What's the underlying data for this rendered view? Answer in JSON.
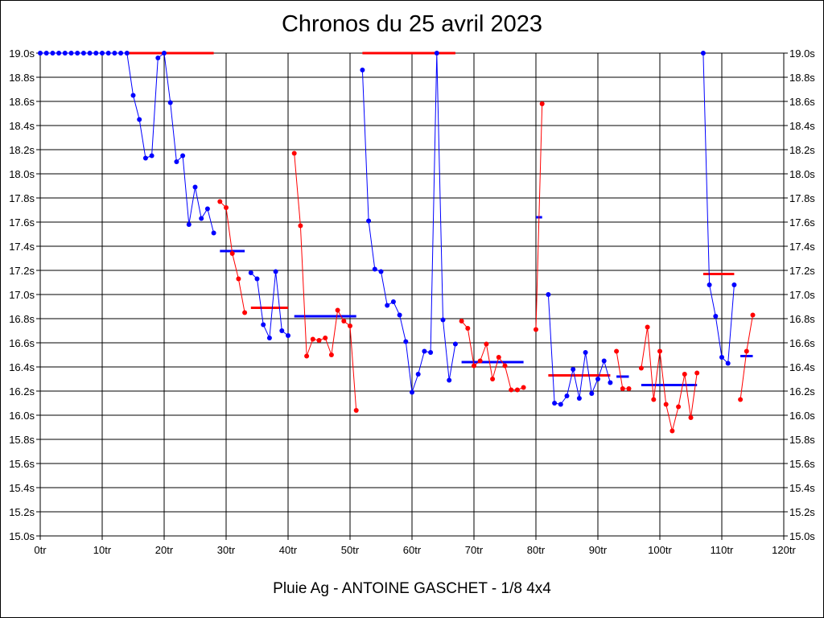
{
  "chart_data": {
    "type": "line",
    "title": "Chronos du 25 avril 2023",
    "footer": "Pluie Ag - ANTOINE GASCHET - 1/8 4x4",
    "xlim": [
      0,
      120
    ],
    "ylim": [
      15.0,
      19.0
    ],
    "x_ticks": [
      0,
      10,
      20,
      30,
      40,
      50,
      60,
      70,
      80,
      90,
      100,
      110,
      120
    ],
    "x_tick_labels": [
      "0tr",
      "10tr",
      "20tr",
      "30tr",
      "40tr",
      "50tr",
      "60tr",
      "70tr",
      "80tr",
      "90tr",
      "100tr",
      "110tr",
      "120tr"
    ],
    "y_ticks": [
      15.0,
      15.2,
      15.4,
      15.6,
      15.8,
      16.0,
      16.2,
      16.4,
      16.6,
      16.8,
      17.0,
      17.2,
      17.4,
      17.6,
      17.8,
      18.0,
      18.2,
      18.4,
      18.6,
      18.8,
      19.0
    ],
    "y_tick_labels": [
      "15.0s",
      "15.2s",
      "15.4s",
      "15.6s",
      "15.8s",
      "16.0s",
      "16.2s",
      "16.4s",
      "16.6s",
      "16.8s",
      "17.0s",
      "17.2s",
      "17.4s",
      "17.6s",
      "17.8s",
      "18.0s",
      "18.2s",
      "18.4s",
      "18.6s",
      "18.8s",
      "19.0s"
    ],
    "grid": true,
    "colors": {
      "blue": "#0000ff",
      "red": "#ff0000"
    },
    "segments": [
      {
        "color": "blue",
        "points": [
          [
            0,
            19.0
          ],
          [
            1,
            19.0
          ],
          [
            2,
            19.0
          ],
          [
            3,
            19.0
          ],
          [
            4,
            19.0
          ],
          [
            5,
            19.0
          ],
          [
            6,
            19.0
          ],
          [
            7,
            19.0
          ],
          [
            8,
            19.0
          ],
          [
            9,
            19.0
          ],
          [
            10,
            19.0
          ],
          [
            11,
            19.0
          ],
          [
            12,
            19.0
          ],
          [
            13,
            19.0
          ],
          [
            14,
            19.0
          ],
          [
            15,
            18.65
          ],
          [
            16,
            18.45
          ],
          [
            17,
            18.13
          ],
          [
            18,
            18.15
          ],
          [
            19,
            18.96
          ],
          [
            20,
            19.0
          ],
          [
            21,
            18.59
          ],
          [
            22,
            18.1
          ],
          [
            23,
            18.15
          ],
          [
            24,
            17.58
          ],
          [
            25,
            17.89
          ],
          [
            26,
            17.63
          ],
          [
            27,
            17.71
          ],
          [
            28,
            17.51
          ]
        ]
      },
      {
        "color": "red",
        "points": [
          [
            29,
            17.77
          ],
          [
            30,
            17.72
          ],
          [
            31,
            17.34
          ],
          [
            32,
            17.13
          ],
          [
            33,
            16.85
          ]
        ]
      },
      {
        "color": "blue",
        "points": [
          [
            34,
            17.18
          ],
          [
            35,
            17.13
          ],
          [
            36,
            16.75
          ],
          [
            37,
            16.64
          ],
          [
            38,
            17.19
          ],
          [
            39,
            16.7
          ],
          [
            40,
            16.66
          ]
        ]
      },
      {
        "color": "red",
        "points": [
          [
            41,
            18.17
          ],
          [
            42,
            17.57
          ],
          [
            43,
            16.49
          ],
          [
            44,
            16.63
          ],
          [
            45,
            16.62
          ],
          [
            46,
            16.64
          ],
          [
            47,
            16.5
          ],
          [
            48,
            16.87
          ],
          [
            49,
            16.78
          ],
          [
            50,
            16.74
          ],
          [
            51,
            16.04
          ]
        ]
      },
      {
        "color": "blue",
        "points": [
          [
            52,
            18.86
          ],
          [
            53,
            17.61
          ],
          [
            54,
            17.21
          ],
          [
            55,
            17.19
          ],
          [
            56,
            16.91
          ],
          [
            57,
            16.94
          ],
          [
            58,
            16.83
          ],
          [
            59,
            16.61
          ],
          [
            60,
            16.19
          ],
          [
            61,
            16.34
          ],
          [
            62,
            16.53
          ],
          [
            63,
            16.52
          ],
          [
            64,
            19.0
          ],
          [
            65,
            16.79
          ],
          [
            66,
            16.29
          ],
          [
            67,
            16.59
          ]
        ]
      },
      {
        "color": "red",
        "points": [
          [
            68,
            16.78
          ],
          [
            69,
            16.72
          ],
          [
            70,
            16.41
          ],
          [
            71,
            16.45
          ],
          [
            72,
            16.59
          ],
          [
            73,
            16.3
          ],
          [
            74,
            16.48
          ],
          [
            75,
            16.41
          ],
          [
            76,
            16.21
          ],
          [
            77,
            16.21
          ],
          [
            78,
            16.23
          ]
        ]
      },
      {
        "color": "red",
        "points": [
          [
            80,
            16.71
          ],
          [
            81,
            18.58
          ]
        ]
      },
      {
        "color": "blue",
        "points": [
          [
            82,
            17.0
          ],
          [
            83,
            16.1
          ],
          [
            84,
            16.09
          ],
          [
            85,
            16.16
          ],
          [
            86,
            16.38
          ],
          [
            87,
            16.14
          ],
          [
            88,
            16.52
          ],
          [
            89,
            16.18
          ],
          [
            90,
            16.3
          ],
          [
            91,
            16.45
          ],
          [
            92,
            16.27
          ]
        ]
      },
      {
        "color": "red",
        "points": [
          [
            93,
            16.53
          ],
          [
            94,
            16.22
          ],
          [
            95,
            16.22
          ]
        ]
      },
      {
        "color": "red",
        "points": [
          [
            97,
            16.39
          ],
          [
            98,
            16.73
          ],
          [
            99,
            16.13
          ],
          [
            100,
            16.53
          ],
          [
            101,
            16.09
          ],
          [
            102,
            15.87
          ],
          [
            103,
            16.07
          ],
          [
            104,
            16.34
          ],
          [
            105,
            15.98
          ],
          [
            106,
            16.35
          ]
        ]
      },
      {
        "color": "blue",
        "points": [
          [
            107,
            19.0
          ],
          [
            108,
            17.08
          ],
          [
            109,
            16.82
          ],
          [
            110,
            16.48
          ],
          [
            111,
            16.43
          ],
          [
            112,
            17.08
          ]
        ]
      },
      {
        "color": "red",
        "points": [
          [
            113,
            16.13
          ],
          [
            114,
            16.53
          ],
          [
            115,
            16.83
          ]
        ]
      }
    ],
    "averages": [
      {
        "color": "red",
        "x1": 14,
        "x2": 28,
        "y": 19.0
      },
      {
        "color": "blue",
        "x1": 29,
        "x2": 33,
        "y": 17.36
      },
      {
        "color": "red",
        "x1": 34,
        "x2": 40,
        "y": 16.89
      },
      {
        "color": "blue",
        "x1": 41,
        "x2": 51,
        "y": 16.82
      },
      {
        "color": "red",
        "x1": 52,
        "x2": 67,
        "y": 19.0
      },
      {
        "color": "blue",
        "x1": 68,
        "x2": 78,
        "y": 16.44
      },
      {
        "color": "blue",
        "x1": 80,
        "x2": 81,
        "y": 17.64
      },
      {
        "color": "red",
        "x1": 82,
        "x2": 92,
        "y": 16.33
      },
      {
        "color": "blue",
        "x1": 93,
        "x2": 95,
        "y": 16.32
      },
      {
        "color": "blue",
        "x1": 97,
        "x2": 106,
        "y": 16.25
      },
      {
        "color": "red",
        "x1": 107,
        "x2": 112,
        "y": 17.17
      },
      {
        "color": "blue",
        "x1": 113,
        "x2": 115,
        "y": 16.49
      }
    ]
  }
}
